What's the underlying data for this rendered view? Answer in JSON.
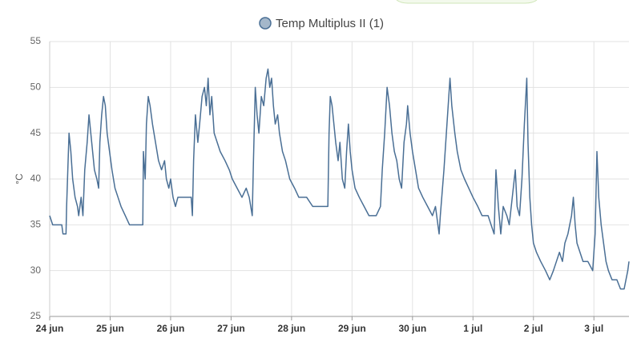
{
  "chart_data": {
    "type": "line",
    "legend": "Temp Multiplus II (1)",
    "ylabel": "°C",
    "xlim": [
      0,
      9.58
    ],
    "xticks": [
      {
        "value": 0,
        "label": "24 jun"
      },
      {
        "value": 1,
        "label": "25 jun"
      },
      {
        "value": 2,
        "label": "26 jun"
      },
      {
        "value": 3,
        "label": "27 jun"
      },
      {
        "value": 4,
        "label": "28 jun"
      },
      {
        "value": 5,
        "label": "29 jun"
      },
      {
        "value": 6,
        "label": "30 jun"
      },
      {
        "value": 7,
        "label": "1 jul"
      },
      {
        "value": 8,
        "label": "2 jul"
      },
      {
        "value": 9,
        "label": "3 jul"
      }
    ],
    "ylim": [
      25,
      55
    ],
    "yticks": [
      25,
      30,
      35,
      40,
      45,
      50,
      55
    ],
    "grid": true,
    "x": [
      0,
      0.05,
      0.2,
      0.22,
      0.27,
      0.28,
      0.3,
      0.32,
      0.35,
      0.38,
      0.42,
      0.46,
      0.48,
      0.52,
      0.55,
      0.58,
      0.62,
      0.65,
      0.68,
      0.71,
      0.74,
      0.78,
      0.81,
      0.83,
      0.86,
      0.89,
      0.92,
      0.95,
      0.99,
      1.03,
      1.08,
      1.13,
      1.18,
      1.25,
      1.32,
      1.42,
      1.54,
      1.55,
      1.58,
      1.6,
      1.63,
      1.66,
      1.7,
      1.75,
      1.8,
      1.85,
      1.9,
      1.93,
      1.97,
      2.0,
      2.04,
      2.08,
      2.12,
      2.25,
      2.34,
      2.36,
      2.38,
      2.41,
      2.45,
      2.48,
      2.52,
      2.56,
      2.59,
      2.62,
      2.65,
      2.68,
      2.72,
      2.77,
      2.82,
      2.9,
      2.97,
      3.02,
      3.1,
      3.18,
      3.25,
      3.3,
      3.35,
      3.37,
      3.4,
      3.43,
      3.46,
      3.5,
      3.54,
      3.58,
      3.61,
      3.64,
      3.67,
      3.7,
      3.73,
      3.77,
      3.8,
      3.85,
      3.9,
      3.97,
      4.05,
      4.12,
      4.25,
      4.35,
      4.5,
      4.6,
      4.62,
      4.64,
      4.67,
      4.7,
      4.73,
      4.77,
      4.8,
      4.84,
      4.88,
      4.91,
      4.94,
      4.97,
      5.0,
      5.05,
      5.12,
      5.2,
      5.28,
      5.4,
      5.47,
      5.5,
      5.54,
      5.58,
      5.62,
      5.66,
      5.7,
      5.74,
      5.78,
      5.82,
      5.86,
      5.9,
      5.92,
      5.96,
      6.0,
      6.05,
      6.1,
      6.17,
      6.25,
      6.33,
      6.38,
      6.42,
      6.44,
      6.46,
      6.52,
      6.56,
      6.6,
      6.62,
      6.65,
      6.7,
      6.74,
      6.8,
      6.86,
      6.93,
      7.0,
      7.08,
      7.15,
      7.25,
      7.3,
      7.35,
      7.38,
      7.42,
      7.46,
      7.5,
      7.56,
      7.6,
      7.65,
      7.7,
      7.73,
      7.77,
      7.81,
      7.85,
      7.89,
      7.91,
      7.94,
      7.97,
      8.0,
      8.05,
      8.12,
      8.2,
      8.27,
      8.33,
      8.38,
      8.43,
      8.48,
      8.52,
      8.57,
      8.6,
      8.63,
      8.66,
      8.69,
      8.72,
      8.77,
      8.82,
      8.9,
      8.98,
      9.02,
      9.05,
      9.08,
      9.12,
      9.16,
      9.2,
      9.24,
      9.3,
      9.38,
      9.44,
      9.5,
      9.53,
      9.56,
      9.58
    ],
    "series": [
      {
        "name": "Temp Multiplus II (1)",
        "color": "#4a6f95",
        "values": [
          36,
          35,
          35,
          34,
          34,
          37,
          41,
          45,
          43,
          40,
          38,
          37,
          36,
          38,
          36,
          41,
          44,
          47,
          45,
          43,
          41,
          40,
          39,
          44,
          47,
          49,
          48,
          45,
          43,
          41,
          39,
          38,
          37,
          36,
          35,
          35,
          35,
          43,
          40,
          46,
          49,
          48,
          46,
          44,
          42,
          41,
          42,
          40,
          39,
          40,
          38,
          37,
          38,
          38,
          38,
          36,
          42,
          47,
          44,
          46,
          49,
          50,
          48,
          51,
          47,
          49,
          45,
          44,
          43,
          42,
          41,
          40,
          39,
          38,
          39,
          38,
          36,
          42,
          50,
          47,
          45,
          49,
          48,
          51,
          52,
          50,
          51,
          48,
          46,
          47,
          45,
          43,
          42,
          40,
          39,
          38,
          38,
          37,
          37,
          37,
          45,
          49,
          48,
          46,
          44,
          42,
          44,
          40,
          39,
          43,
          46,
          43,
          41,
          39,
          38,
          37,
          36,
          36,
          37,
          41,
          45,
          50,
          48,
          45,
          43,
          42,
          40,
          39,
          44,
          46,
          48,
          45,
          43,
          41,
          39,
          38,
          37,
          36,
          37,
          35,
          34,
          36,
          41,
          45,
          49,
          51,
          48,
          45,
          43,
          41,
          40,
          39,
          38,
          37,
          36,
          36,
          35,
          34,
          41,
          37,
          34,
          37,
          36,
          35,
          38,
          41,
          37,
          36,
          40,
          46,
          51,
          44,
          38,
          35,
          33,
          32,
          31,
          30,
          29,
          30,
          31,
          32,
          31,
          33,
          34,
          35,
          36,
          38,
          35,
          33,
          32,
          31,
          31,
          30,
          34,
          43,
          38,
          35,
          33,
          31,
          30,
          29,
          29,
          28,
          28,
          29,
          30,
          31
        ]
      }
    ]
  }
}
